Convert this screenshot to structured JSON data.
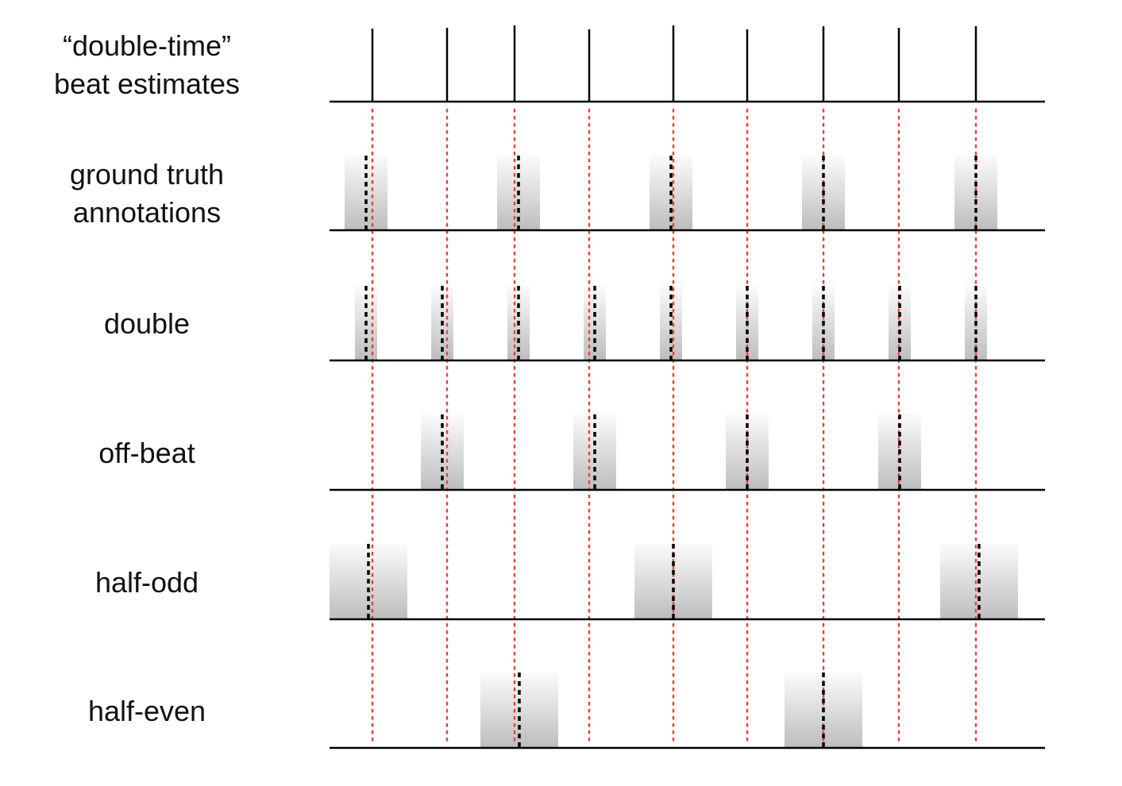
{
  "rows": [
    {
      "label": "“double-time”\nbeat estimates"
    },
    {
      "label": "ground truth\nannotations"
    },
    {
      "label": "double"
    },
    {
      "label": "off-beat"
    },
    {
      "label": "half-odd"
    },
    {
      "label": "half-even"
    }
  ],
  "colors": {
    "estimate_line": "#000000",
    "guide_line": "#e8443a",
    "annotation_tick": "#000000",
    "window_top": "#fbfbfb",
    "window_bottom": "#bdbdbd",
    "baseline": "#000000"
  }
}
